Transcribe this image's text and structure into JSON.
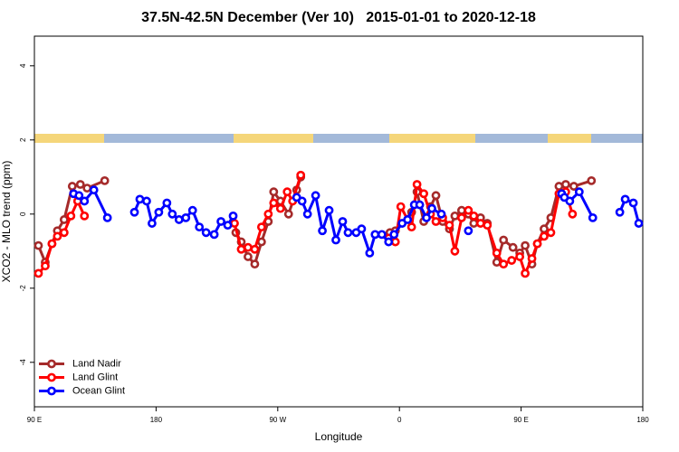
{
  "chart_data": {
    "type": "line",
    "title": "37.5N-42.5N December (Ver 10)   2015-01-01 to 2020-12-18",
    "x_label": "Longitude",
    "y_label": "XCO2 - MLO trend (ppm)",
    "xlim": [
      90,
      540
    ],
    "ylim": [
      -5.2,
      4.8
    ],
    "xticks": [
      {
        "value": 90,
        "label": "90 E"
      },
      {
        "value": 180,
        "label": "180"
      },
      {
        "value": 270,
        "label": "90 W"
      },
      {
        "value": 360,
        "label": "0"
      },
      {
        "value": 450,
        "label": "90 E"
      },
      {
        "value": 540,
        "label": "180"
      }
    ],
    "yticks": [
      -4,
      -2,
      0,
      2,
      4
    ],
    "legend": "bottomleft",
    "series": [
      {
        "name": "Land Nadir",
        "color": "#a52a2a",
        "x": [
          93,
          98,
          103,
          107,
          112,
          118,
          124,
          129,
          142,
          190,
          239,
          243,
          248,
          253,
          258,
          263,
          267,
          272,
          278,
          284,
          287,
          320,
          353,
          357,
          369,
          373,
          378,
          383,
          387,
          392,
          397,
          401,
          406,
          411,
          415,
          420,
          425,
          432,
          437,
          444,
          449,
          453,
          458,
          462,
          467,
          472,
          478,
          483,
          489,
          502
        ],
        "values": [
          -0.85,
          -1.3,
          -0.8,
          -0.45,
          -0.15,
          0.75,
          0.8,
          0.7,
          0.9,
          null,
          -0.5,
          -0.75,
          -1.15,
          -1.35,
          -0.75,
          -0.2,
          0.6,
          0.35,
          0,
          0.65,
          1.0,
          null,
          -0.5,
          -0.45,
          0.05,
          0.6,
          -0.2,
          0.2,
          0.5,
          -0.2,
          -0.4,
          -0.05,
          0.1,
          0,
          -0.25,
          -0.1,
          -0.25,
          -1.3,
          -0.7,
          -0.9,
          -1.05,
          -0.85,
          -1.35,
          -0.8,
          -0.4,
          -0.1,
          0.75,
          0.8,
          0.75,
          0.9
        ]
      },
      {
        "name": "Land Glint",
        "color": "#ff0000",
        "x": [
          93,
          98,
          103,
          107,
          112,
          117,
          122,
          127,
          190,
          238,
          243,
          248,
          253,
          258,
          263,
          267,
          272,
          277,
          281,
          287,
          320,
          352,
          357,
          361,
          369,
          373,
          378,
          383,
          387,
          392,
          397,
          401,
          406,
          411,
          415,
          420,
          425,
          432,
          437,
          443,
          449,
          453,
          458,
          462,
          467,
          472,
          478,
          483,
          488
        ],
        "values": [
          -1.6,
          -1.4,
          -0.8,
          -0.6,
          -0.5,
          -0.05,
          0.35,
          -0.05,
          null,
          -0.25,
          -0.95,
          -0.9,
          -0.95,
          -0.35,
          0,
          0.3,
          0.15,
          0.6,
          0.35,
          1.05,
          null,
          -0.65,
          -0.75,
          0.2,
          -0.35,
          0.8,
          0.55,
          0,
          -0.2,
          -0.1,
          -0.3,
          -1.0,
          -0.1,
          0.1,
          -0.05,
          -0.25,
          -0.3,
          -1.05,
          -1.35,
          -1.25,
          -1.15,
          -1.6,
          -1.2,
          -0.8,
          -0.6,
          -0.5,
          0.55,
          0.6,
          0
        ]
      },
      {
        "name": "Ocean Glint",
        "color": "#0000ff",
        "x": [
          119,
          123,
          127,
          134,
          144,
          154,
          164,
          168,
          173,
          177,
          182,
          188,
          192,
          197,
          202,
          207,
          212,
          217,
          223,
          228,
          233,
          237,
          260,
          284,
          288,
          292,
          298,
          303,
          308,
          313,
          318,
          322,
          328,
          332,
          338,
          342,
          347,
          352,
          356,
          362,
          366,
          371,
          375,
          380,
          384,
          391,
          400,
          411,
          450,
          480,
          482,
          486,
          493,
          503,
          513,
          523,
          527,
          533,
          537
        ],
        "values": [
          0.55,
          0.5,
          0.35,
          0.65,
          -0.1,
          null,
          0.05,
          0.4,
          0.35,
          -0.25,
          0.05,
          0.3,
          0,
          -0.15,
          -0.1,
          0.1,
          -0.35,
          -0.5,
          -0.55,
          -0.2,
          -0.3,
          -0.05,
          null,
          0.45,
          0.35,
          0,
          0.5,
          -0.45,
          0.1,
          -0.7,
          -0.2,
          -0.5,
          -0.5,
          -0.4,
          -1.05,
          -0.55,
          -0.55,
          -0.75,
          -0.55,
          -0.25,
          -0.15,
          0.25,
          0.25,
          -0.1,
          0.15,
          0,
          null,
          -0.45,
          null,
          0.55,
          0.45,
          0.35,
          0.6,
          -0.1,
          null,
          0.05,
          0.4,
          0.3,
          -0.25
        ]
      }
    ]
  }
}
